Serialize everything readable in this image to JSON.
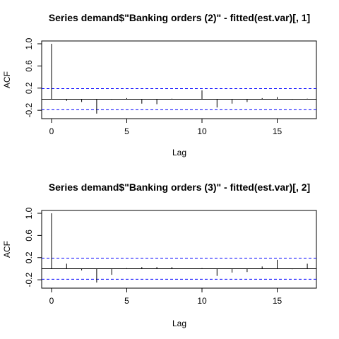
{
  "chart_data": [
    {
      "type": "bar",
      "title": "Series  demand$\"Banking orders (2)\" - fitted(est.var)[, 1]",
      "xlabel": "Lag",
      "ylabel": "ACF",
      "xlim": [
        0,
        17
      ],
      "ylim": [
        -0.3,
        1.0
      ],
      "x_ticks": [
        0,
        5,
        10,
        15
      ],
      "y_ticks": [
        -0.2,
        0.2,
        0.6,
        1.0
      ],
      "x_tick_labels": [
        "0",
        "5",
        "10",
        "15"
      ],
      "y_tick_labels": [
        "-0.2",
        "0.2",
        "0.6",
        "1.0"
      ],
      "lags": [
        0,
        1,
        2,
        3,
        4,
        5,
        6,
        7,
        8,
        9,
        10,
        11,
        12,
        13,
        14,
        15,
        16,
        17
      ],
      "values": [
        1.0,
        -0.03,
        -0.05,
        -0.26,
        -0.01,
        0.02,
        -0.08,
        -0.09,
        0.01,
        0.0,
        0.16,
        -0.15,
        -0.08,
        -0.05,
        0.02,
        0.04,
        -0.01,
        0.01
      ],
      "ci": 0.19,
      "colors": {
        "line": "#000000",
        "ci": "#0000ff"
      }
    },
    {
      "type": "bar",
      "title": "Series  demand$\"Banking orders (3)\" - fitted(est.var)[, 2]",
      "xlabel": "Lag",
      "ylabel": "ACF",
      "xlim": [
        0,
        17
      ],
      "ylim": [
        -0.3,
        1.0
      ],
      "x_ticks": [
        0,
        5,
        10,
        15
      ],
      "y_ticks": [
        -0.2,
        0.2,
        0.6,
        1.0
      ],
      "x_tick_labels": [
        "0",
        "5",
        "10",
        "15"
      ],
      "y_tick_labels": [
        "-0.2",
        "0.2",
        "0.6",
        "1.0"
      ],
      "lags": [
        0,
        1,
        2,
        3,
        4,
        5,
        6,
        7,
        8,
        9,
        10,
        11,
        12,
        13,
        14,
        15,
        16,
        17
      ],
      "values": [
        1.0,
        0.09,
        -0.03,
        -0.25,
        -0.11,
        0.01,
        0.03,
        0.03,
        0.03,
        0.0,
        0.01,
        -0.13,
        -0.07,
        -0.06,
        0.04,
        0.16,
        -0.01,
        0.09
      ],
      "ci": 0.19,
      "colors": {
        "line": "#000000",
        "ci": "#0000ff"
      }
    }
  ]
}
